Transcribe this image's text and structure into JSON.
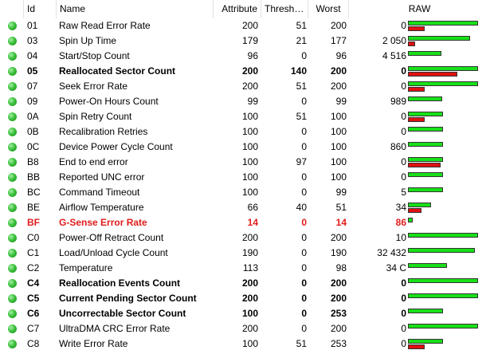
{
  "headers": {
    "id": "Id",
    "name": "Name",
    "attribute": "Attribute",
    "threshold": "Thresh…",
    "worst": "Worst",
    "raw": "RAW"
  },
  "colors": {
    "status_good": "#3dc23d",
    "bar_green": "#18e018",
    "bar_red": "#e01010",
    "warning_text": "#e01b1b"
  },
  "rows": [
    {
      "id": "01",
      "name": "Raw Read Error Rate",
      "attribute": "200",
      "threshold": "51",
      "worst": "200",
      "raw": "0",
      "style": "normal",
      "green": 1.0,
      "red": 0.24
    },
    {
      "id": "03",
      "name": "Spin Up Time",
      "attribute": "179",
      "threshold": "21",
      "worst": "177",
      "raw": "2 050",
      "style": "normal",
      "green": 0.89,
      "red": 0.1
    },
    {
      "id": "04",
      "name": "Start/Stop Count",
      "attribute": "96",
      "threshold": "0",
      "worst": "96",
      "raw": "4 516",
      "style": "normal",
      "green": 0.48,
      "red": 0
    },
    {
      "id": "05",
      "name": "Reallocated Sector Count",
      "attribute": "200",
      "threshold": "140",
      "worst": "200",
      "raw": "0",
      "style": "bold",
      "green": 1.0,
      "red": 0.7
    },
    {
      "id": "07",
      "name": "Seek Error Rate",
      "attribute": "200",
      "threshold": "51",
      "worst": "200",
      "raw": "0",
      "style": "normal",
      "green": 1.0,
      "red": 0.24
    },
    {
      "id": "09",
      "name": "Power-On Hours Count",
      "attribute": "99",
      "threshold": "0",
      "worst": "99",
      "raw": "989",
      "style": "normal",
      "green": 0.49,
      "red": 0
    },
    {
      "id": "0A",
      "name": "Spin Retry Count",
      "attribute": "100",
      "threshold": "51",
      "worst": "100",
      "raw": "0",
      "style": "normal",
      "green": 0.5,
      "red": 0.24
    },
    {
      "id": "0B",
      "name": "Recalibration Retries",
      "attribute": "100",
      "threshold": "0",
      "worst": "100",
      "raw": "0",
      "style": "normal",
      "green": 0.5,
      "red": 0
    },
    {
      "id": "0C",
      "name": "Device Power Cycle Count",
      "attribute": "100",
      "threshold": "0",
      "worst": "100",
      "raw": "860",
      "style": "normal",
      "green": 0.5,
      "red": 0
    },
    {
      "id": "B8",
      "name": "End to end error",
      "attribute": "100",
      "threshold": "97",
      "worst": "100",
      "raw": "0",
      "style": "normal",
      "green": 0.5,
      "red": 0.47
    },
    {
      "id": "BB",
      "name": "Reported UNC error",
      "attribute": "100",
      "threshold": "0",
      "worst": "100",
      "raw": "0",
      "style": "normal",
      "green": 0.5,
      "red": 0
    },
    {
      "id": "BC",
      "name": "Command Timeout",
      "attribute": "100",
      "threshold": "0",
      "worst": "99",
      "raw": "5",
      "style": "normal",
      "green": 0.5,
      "red": 0
    },
    {
      "id": "BE",
      "name": "Airflow Temperature",
      "attribute": "66",
      "threshold": "40",
      "worst": "51",
      "raw": "34",
      "style": "normal",
      "green": 0.33,
      "red": 0.19
    },
    {
      "id": "BF",
      "name": "G-Sense Error Rate",
      "attribute": "14",
      "threshold": "0",
      "worst": "14",
      "raw": "86",
      "style": "warn",
      "green": 0.07,
      "red": 0
    },
    {
      "id": "C0",
      "name": "Power-Off Retract Count",
      "attribute": "200",
      "threshold": "0",
      "worst": "200",
      "raw": "10",
      "style": "normal",
      "green": 1.0,
      "red": 0
    },
    {
      "id": "C1",
      "name": "Load/Unload Cycle Count",
      "attribute": "190",
      "threshold": "0",
      "worst": "190",
      "raw": "32 432",
      "style": "normal",
      "green": 0.95,
      "red": 0
    },
    {
      "id": "C2",
      "name": "Temperature",
      "attribute": "113",
      "threshold": "0",
      "worst": "98",
      "raw": "34 C",
      "style": "normal",
      "green": 0.56,
      "red": 0
    },
    {
      "id": "C4",
      "name": "Reallocation Events Count",
      "attribute": "200",
      "threshold": "0",
      "worst": "200",
      "raw": "0",
      "style": "bold",
      "green": 1.0,
      "red": 0
    },
    {
      "id": "C5",
      "name": "Current Pending Sector Count",
      "attribute": "200",
      "threshold": "0",
      "worst": "200",
      "raw": "0",
      "style": "bold",
      "green": 1.0,
      "red": 0
    },
    {
      "id": "C6",
      "name": "Uncorrectable Sector Count",
      "attribute": "100",
      "threshold": "0",
      "worst": "253",
      "raw": "0",
      "style": "bold",
      "green": 0.5,
      "red": 0
    },
    {
      "id": "C7",
      "name": "UltraDMA CRC Error Rate",
      "attribute": "200",
      "threshold": "0",
      "worst": "200",
      "raw": "0",
      "style": "normal",
      "green": 1.0,
      "red": 0
    },
    {
      "id": "C8",
      "name": "Write Error Rate",
      "attribute": "100",
      "threshold": "51",
      "worst": "253",
      "raw": "0",
      "style": "normal",
      "green": 0.5,
      "red": 0.24
    }
  ]
}
